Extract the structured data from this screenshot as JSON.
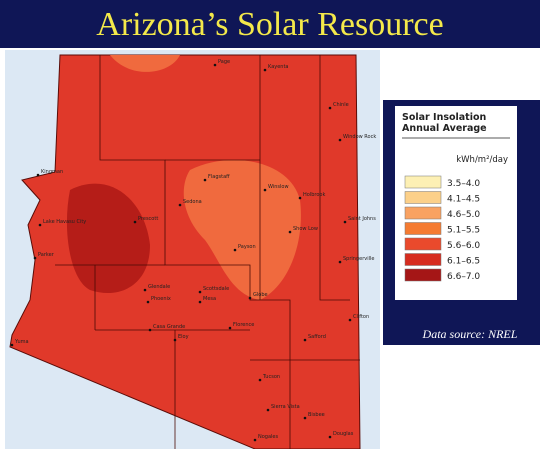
{
  "title": "Arizona’s Solar Resource",
  "legend": {
    "title": [
      "Solar Insolation",
      "Annual Average"
    ],
    "unit": "kWh/m²/day",
    "items": [
      {
        "label": "3.5–4.0",
        "color": "#fdf0b4"
      },
      {
        "label": "4.1–4.5",
        "color": "#fcd089"
      },
      {
        "label": "4.6–5.0",
        "color": "#f9a261"
      },
      {
        "label": "5.1–5.5",
        "color": "#f57b31"
      },
      {
        "label": "5.6–6.0",
        "color": "#ea4a2c"
      },
      {
        "label": "6.1–6.5",
        "color": "#d62c1f"
      },
      {
        "label": "6.6–7.0",
        "color": "#a51616"
      }
    ]
  },
  "source": "Data source: NREL",
  "cities": [
    "Page",
    "Kayenta",
    "Chinle",
    "Window Rock",
    "Kingman",
    "Flagstaff",
    "Winslow",
    "Holbrook",
    "Sedona",
    "Prescott",
    "Lake Havasu City",
    "Payson",
    "Show Low",
    "Saint Johns",
    "Parker",
    "Glendale",
    "Scottsdale",
    "Phoenix",
    "Mesa",
    "Globe",
    "Springerville",
    "Clifton",
    "Casa Grande",
    "Florence",
    "Eloy",
    "Safford",
    "Yuma",
    "Tucson",
    "Sierra Vista",
    "Bisbee",
    "Nogales",
    "Douglas"
  ]
}
